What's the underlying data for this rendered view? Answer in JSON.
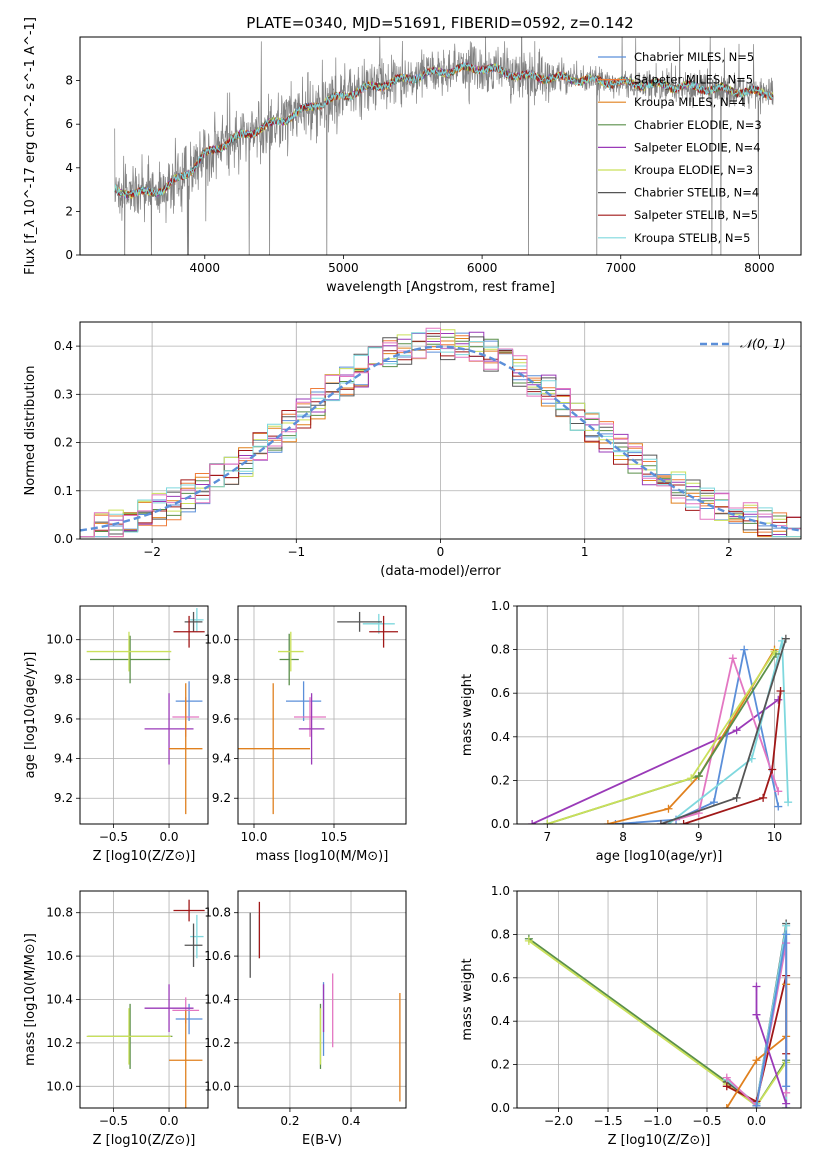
{
  "figure_title": "PLATE=0340, MJD=51691, FIBERID=0592, z=0.142",
  "chart_data": [
    {
      "id": "spectrum",
      "type": "line",
      "title": "PLATE=0340, MJD=51691, FIBERID=0592, z=0.142",
      "xlabel": "wavelength [Angstrom, rest frame]",
      "ylabel": "Flux [f_λ 10^-17 erg cm^-2 s^-1 A^-1]",
      "xlim": [
        3100,
        8300
      ],
      "ylim": [
        0,
        10
      ],
      "xticks": [
        4000,
        5000,
        6000,
        7000,
        8000
      ],
      "yticks": [
        0,
        2,
        4,
        6,
        8
      ],
      "grid": false,
      "legend_position": "top-right",
      "data_wavelength_range": [
        3350,
        8100
      ],
      "data_continuum": [
        [
          3350,
          3.0
        ],
        [
          3500,
          2.8
        ],
        [
          3700,
          3.0
        ],
        [
          3900,
          3.9
        ],
        [
          4000,
          4.6
        ],
        [
          4200,
          5.3
        ],
        [
          4400,
          5.8
        ],
        [
          4600,
          6.3
        ],
        [
          4800,
          6.9
        ],
        [
          5000,
          7.3
        ],
        [
          5200,
          7.7
        ],
        [
          5400,
          8.0
        ],
        [
          5600,
          8.3
        ],
        [
          5800,
          8.5
        ],
        [
          6000,
          8.6
        ],
        [
          6300,
          8.2
        ],
        [
          6600,
          8.1
        ],
        [
          7000,
          7.9
        ],
        [
          7500,
          7.7
        ],
        [
          8100,
          7.4
        ]
      ],
      "series": [
        {
          "name": "Chabrier MILES, N_SSP=5",
          "color": "#5b8fd9"
        },
        {
          "name": "Salpeter MILES, N_SSP=5",
          "color": "#ee7d3b"
        },
        {
          "name": "Kroupa MILES, N_SSP=4",
          "color": "#e0801e"
        },
        {
          "name": "Chabrier ELODIE, N_SSP=3",
          "color": "#5a8f4a"
        },
        {
          "name": "Salpeter ELODIE, N_SSP=4",
          "color": "#9a3ab8"
        },
        {
          "name": "Kroupa ELODIE, N_SSP=3",
          "color": "#c9e05a"
        },
        {
          "name": "Chabrier STELIB, N_SSP=4",
          "color": "#555555"
        },
        {
          "name": "Salpeter STELIB, N_SSP=5",
          "color": "#a01818"
        },
        {
          "name": "Kroupa STELIB, N_SSP=5",
          "color": "#7fd8de"
        }
      ],
      "data_color": "#808080"
    },
    {
      "id": "residuals",
      "type": "line",
      "xlabel": "(data-model)/error",
      "ylabel": "Normed distribution",
      "xlim": [
        -2.5,
        2.5
      ],
      "ylim": [
        0,
        0.45
      ],
      "xticks": [
        -2,
        -1,
        0,
        1,
        2
      ],
      "yticks": [
        0.0,
        0.1,
        0.2,
        0.3,
        0.4
      ],
      "grid": true,
      "legend_position": "top-right",
      "series": [
        {
          "name": "𝒩(0, 1)",
          "style": "dashed",
          "color": "#5b8fd9",
          "function": "gaussian",
          "mean": 0,
          "sigma": 1
        }
      ],
      "histogram_colors": [
        "#5b8fd9",
        "#ee7d3b",
        "#e0801e",
        "#5a8f4a",
        "#9a3ab8",
        "#c9e05a",
        "#555555",
        "#a01818",
        "#7fd8de",
        "#e377c2"
      ]
    },
    {
      "id": "age_vs_Z",
      "type": "scatter",
      "xlabel": "Z [log10(Z/Z⊙)]",
      "ylabel": "age  [log10(age/yr)]",
      "xlim": [
        -0.8,
        0.35
      ],
      "ylim": [
        9.07,
        10.17
      ],
      "xticks": [
        -0.5,
        0.0
      ],
      "yticks": [
        9.2,
        9.4,
        9.6,
        9.8,
        10.0
      ],
      "grid": true,
      "points": [
        {
          "x": -0.35,
          "xerr": 0.36,
          "y": 9.9,
          "yerr": 0.12,
          "color": "#5a8f4a"
        },
        {
          "x": -0.36,
          "xerr": 0.38,
          "y": 9.94,
          "yerr": 0.1,
          "color": "#c9e05a"
        },
        {
          "x": 0.25,
          "xerr": 0.06,
          "y": 10.1,
          "yerr": 0.06,
          "color": "#7fd8de"
        },
        {
          "x": 0.22,
          "xerr": 0.08,
          "y": 10.09,
          "yerr": 0.05,
          "color": "#555555"
        },
        {
          "x": 0.18,
          "xerr": 0.14,
          "y": 10.04,
          "yerr": 0.08,
          "color": "#a01818"
        },
        {
          "x": 0.18,
          "xerr": 0.12,
          "y": 9.69,
          "yerr": 0.1,
          "color": "#5b8fd9"
        },
        {
          "x": 0.15,
          "xerr": 0.12,
          "y": 9.61,
          "yerr": 0.1,
          "color": "#e377c2"
        },
        {
          "x": 0.0,
          "xerr": 0.22,
          "y": 9.55,
          "yerr": 0.18,
          "color": "#9a3ab8"
        },
        {
          "x": 0.15,
          "xerr": 0.15,
          "y": 9.45,
          "yerr": 0.33,
          "color": "#e0801e"
        }
      ]
    },
    {
      "id": "age_vs_mass",
      "type": "scatter",
      "xlabel": "mass [log10(M/M⊙)]",
      "ylabel": "",
      "xlim": [
        9.9,
        10.95
      ],
      "ylim": [
        9.07,
        10.17
      ],
      "xticks": [
        10.0,
        10.5
      ],
      "yticks": [
        9.2,
        9.4,
        9.6,
        9.8,
        10.0
      ],
      "grid": true,
      "points": [
        {
          "x": 10.22,
          "xerr": 0.06,
          "y": 9.9,
          "yerr": 0.13,
          "color": "#5a8f4a"
        },
        {
          "x": 10.23,
          "xerr": 0.08,
          "y": 9.94,
          "yerr": 0.1,
          "color": "#c9e05a"
        },
        {
          "x": 10.78,
          "xerr": 0.1,
          "y": 10.08,
          "yerr": 0.05,
          "color": "#7fd8de"
        },
        {
          "x": 10.66,
          "xerr": 0.14,
          "y": 10.09,
          "yerr": 0.05,
          "color": "#555555"
        },
        {
          "x": 10.81,
          "xerr": 0.09,
          "y": 10.04,
          "yerr": 0.08,
          "color": "#a01818"
        },
        {
          "x": 10.31,
          "xerr": 0.11,
          "y": 9.69,
          "yerr": 0.1,
          "color": "#5b8fd9"
        },
        {
          "x": 10.35,
          "xerr": 0.1,
          "y": 9.61,
          "yerr": 0.1,
          "color": "#e377c2"
        },
        {
          "x": 10.36,
          "xerr": 0.08,
          "y": 9.55,
          "yerr": 0.18,
          "color": "#9a3ab8"
        },
        {
          "x": 10.12,
          "xerr": 0.23,
          "y": 9.45,
          "yerr": 0.33,
          "color": "#e0801e"
        }
      ]
    },
    {
      "id": "weight_vs_age",
      "type": "line",
      "xlabel": "age  [log10(age/yr)]",
      "ylabel": "mass weight",
      "xlim": [
        6.6,
        10.35
      ],
      "ylim": [
        0,
        1.0
      ],
      "xticks": [
        7,
        8,
        9,
        10
      ],
      "yticks": [
        0.0,
        0.2,
        0.4,
        0.6,
        0.8,
        1.0
      ],
      "grid": true,
      "series": [
        {
          "color": "#9a3ab8",
          "x": [
            6.8,
            9.5,
            10.05
          ],
          "y": [
            0.0,
            0.43,
            0.57
          ]
        },
        {
          "color": "#5b8fd9",
          "x": [
            7.9,
            8.7,
            9.2,
            9.6,
            10.05
          ],
          "y": [
            0.0,
            0.02,
            0.1,
            0.8,
            0.08
          ]
        },
        {
          "color": "#e377c2",
          "x": [
            8.5,
            9.0,
            9.45,
            10.05
          ],
          "y": [
            0.0,
            0.05,
            0.76,
            0.15
          ]
        },
        {
          "color": "#e0801e",
          "x": [
            7.8,
            8.6,
            9.0,
            10.0
          ],
          "y": [
            0.0,
            0.07,
            0.22,
            0.8
          ]
        },
        {
          "color": "#7fd8de",
          "x": [
            8.6,
            9.7,
            10.1,
            10.18
          ],
          "y": [
            0.0,
            0.3,
            0.84,
            0.1
          ]
        },
        {
          "color": "#555555",
          "x": [
            8.5,
            9.5,
            10.15
          ],
          "y": [
            0.0,
            0.12,
            0.85
          ]
        },
        {
          "color": "#a01818",
          "x": [
            8.8,
            9.85,
            9.97,
            10.08
          ],
          "y": [
            0.0,
            0.12,
            0.25,
            0.61
          ]
        },
        {
          "color": "#5a8f4a",
          "x": [
            7.0,
            9.0,
            10.02
          ],
          "y": [
            0.0,
            0.22,
            0.78
          ]
        },
        {
          "color": "#c9e05a",
          "x": [
            7.0,
            8.9,
            10.0
          ],
          "y": [
            0.0,
            0.21,
            0.79
          ]
        }
      ]
    },
    {
      "id": "mass_vs_Z",
      "type": "scatter",
      "xlabel": "Z [log10(Z/Z⊙)]",
      "ylabel": "mass [log10(M/M⊙)]",
      "xlim": [
        -0.8,
        0.35
      ],
      "ylim": [
        9.9,
        10.9
      ],
      "xticks": [
        -0.5,
        0.0
      ],
      "yticks": [
        10.0,
        10.2,
        10.4,
        10.6,
        10.8
      ],
      "grid": true,
      "points": [
        {
          "x": -0.35,
          "xerr": 0.38,
          "y": 10.23,
          "yerr": 0.15,
          "color": "#5a8f4a"
        },
        {
          "x": -0.36,
          "xerr": 0.38,
          "y": 10.23,
          "yerr": 0.13,
          "color": "#c9e05a"
        },
        {
          "x": 0.25,
          "xerr": 0.06,
          "y": 10.69,
          "yerr": 0.1,
          "color": "#7fd8de"
        },
        {
          "x": 0.22,
          "xerr": 0.08,
          "y": 10.65,
          "yerr": 0.1,
          "color": "#555555"
        },
        {
          "x": 0.18,
          "xerr": 0.14,
          "y": 10.81,
          "yerr": 0.05,
          "color": "#a01818"
        },
        {
          "x": 0.18,
          "xerr": 0.12,
          "y": 10.31,
          "yerr": 0.07,
          "color": "#5b8fd9"
        },
        {
          "x": 0.15,
          "xerr": 0.12,
          "y": 10.35,
          "yerr": 0.06,
          "color": "#e377c2"
        },
        {
          "x": 0.0,
          "xerr": 0.22,
          "y": 10.36,
          "yerr": 0.11,
          "color": "#9a3ab8"
        },
        {
          "x": 0.15,
          "xerr": 0.15,
          "y": 10.12,
          "yerr": 0.23,
          "color": "#e0801e"
        }
      ]
    },
    {
      "id": "mass_vs_EBV",
      "type": "scatter",
      "xlabel": "E(B-V)",
      "ylabel": "",
      "xlim": [
        0.03,
        0.58
      ],
      "ylim": [
        9.9,
        10.9
      ],
      "xticks": [
        0.2,
        0.4
      ],
      "yticks": [
        10.0,
        10.2,
        10.4,
        10.6,
        10.8
      ],
      "grid": true,
      "points": [
        {
          "x": 0.3,
          "xerr": 0.0,
          "y": 10.23,
          "yerr": 0.15,
          "color": "#5a8f4a"
        },
        {
          "x": 0.3,
          "xerr": 0.0,
          "y": 10.23,
          "yerr": 0.13,
          "color": "#c9e05a"
        },
        {
          "x": 0.1,
          "xerr": 0.0,
          "y": 10.69,
          "yerr": 0.1,
          "color": "#7fd8de"
        },
        {
          "x": 0.07,
          "xerr": 0.0,
          "y": 10.65,
          "yerr": 0.15,
          "color": "#555555"
        },
        {
          "x": 0.1,
          "xerr": 0.0,
          "y": 10.72,
          "yerr": 0.13,
          "color": "#a01818"
        },
        {
          "x": 0.31,
          "xerr": 0.0,
          "y": 10.31,
          "yerr": 0.17,
          "color": "#5b8fd9"
        },
        {
          "x": 0.34,
          "xerr": 0.0,
          "y": 10.35,
          "yerr": 0.17,
          "color": "#e377c2"
        },
        {
          "x": 0.31,
          "xerr": 0.0,
          "y": 10.36,
          "yerr": 0.11,
          "color": "#9a3ab8"
        },
        {
          "x": 0.56,
          "xerr": 0.0,
          "y": 10.18,
          "yerr": 0.25,
          "color": "#e0801e"
        }
      ]
    },
    {
      "id": "weight_vs_Z",
      "type": "line",
      "xlabel": "Z [log10(Z/Z⊙)]",
      "ylabel": "mass weight",
      "xlim": [
        -2.42,
        0.45
      ],
      "ylim": [
        0,
        1.0
      ],
      "xticks": [
        -2.0,
        -1.5,
        -1.0,
        -0.5,
        0.0
      ],
      "yticks": [
        0.0,
        0.2,
        0.4,
        0.6,
        0.8,
        1.0
      ],
      "grid": true,
      "series": [
        {
          "color": "#5a8f4a",
          "x": [
            -2.3,
            -0.3,
            0.0,
            0.3
          ],
          "y": [
            0.78,
            0.12,
            0.01,
            0.22
          ]
        },
        {
          "color": "#c9e05a",
          "x": [
            -2.3,
            -0.3,
            0.0,
            0.3
          ],
          "y": [
            0.77,
            0.11,
            0.01,
            0.21
          ]
        },
        {
          "color": "#555555",
          "x": [
            -0.3,
            0.0,
            0.3,
            0.3
          ],
          "y": [
            0.12,
            0.02,
            0.85,
            0.0
          ]
        },
        {
          "color": "#7fd8de",
          "x": [
            -0.3,
            0.0,
            0.3,
            0.3
          ],
          "y": [
            0.13,
            0.02,
            0.84,
            0.0
          ]
        },
        {
          "color": "#a01818",
          "x": [
            -0.3,
            0.0,
            0.3,
            0.3
          ],
          "y": [
            0.1,
            0.03,
            0.61,
            0.25
          ]
        },
        {
          "color": "#e377c2",
          "x": [
            -0.3,
            0.0,
            0.3,
            0.3
          ],
          "y": [
            0.14,
            0.01,
            0.76,
            0.07
          ]
        },
        {
          "color": "#e0801e",
          "x": [
            -0.3,
            0.0,
            0.3,
            0.3
          ],
          "y": [
            0.0,
            0.22,
            0.33,
            0.57
          ]
        },
        {
          "color": "#9a3ab8",
          "x": [
            0.0,
            0.0,
            0.3
          ],
          "y": [
            0.56,
            0.43,
            0.02
          ]
        },
        {
          "color": "#5b8fd9",
          "x": [
            0.0,
            0.3,
            0.3
          ],
          "y": [
            0.01,
            0.8,
            0.1
          ]
        }
      ]
    }
  ]
}
